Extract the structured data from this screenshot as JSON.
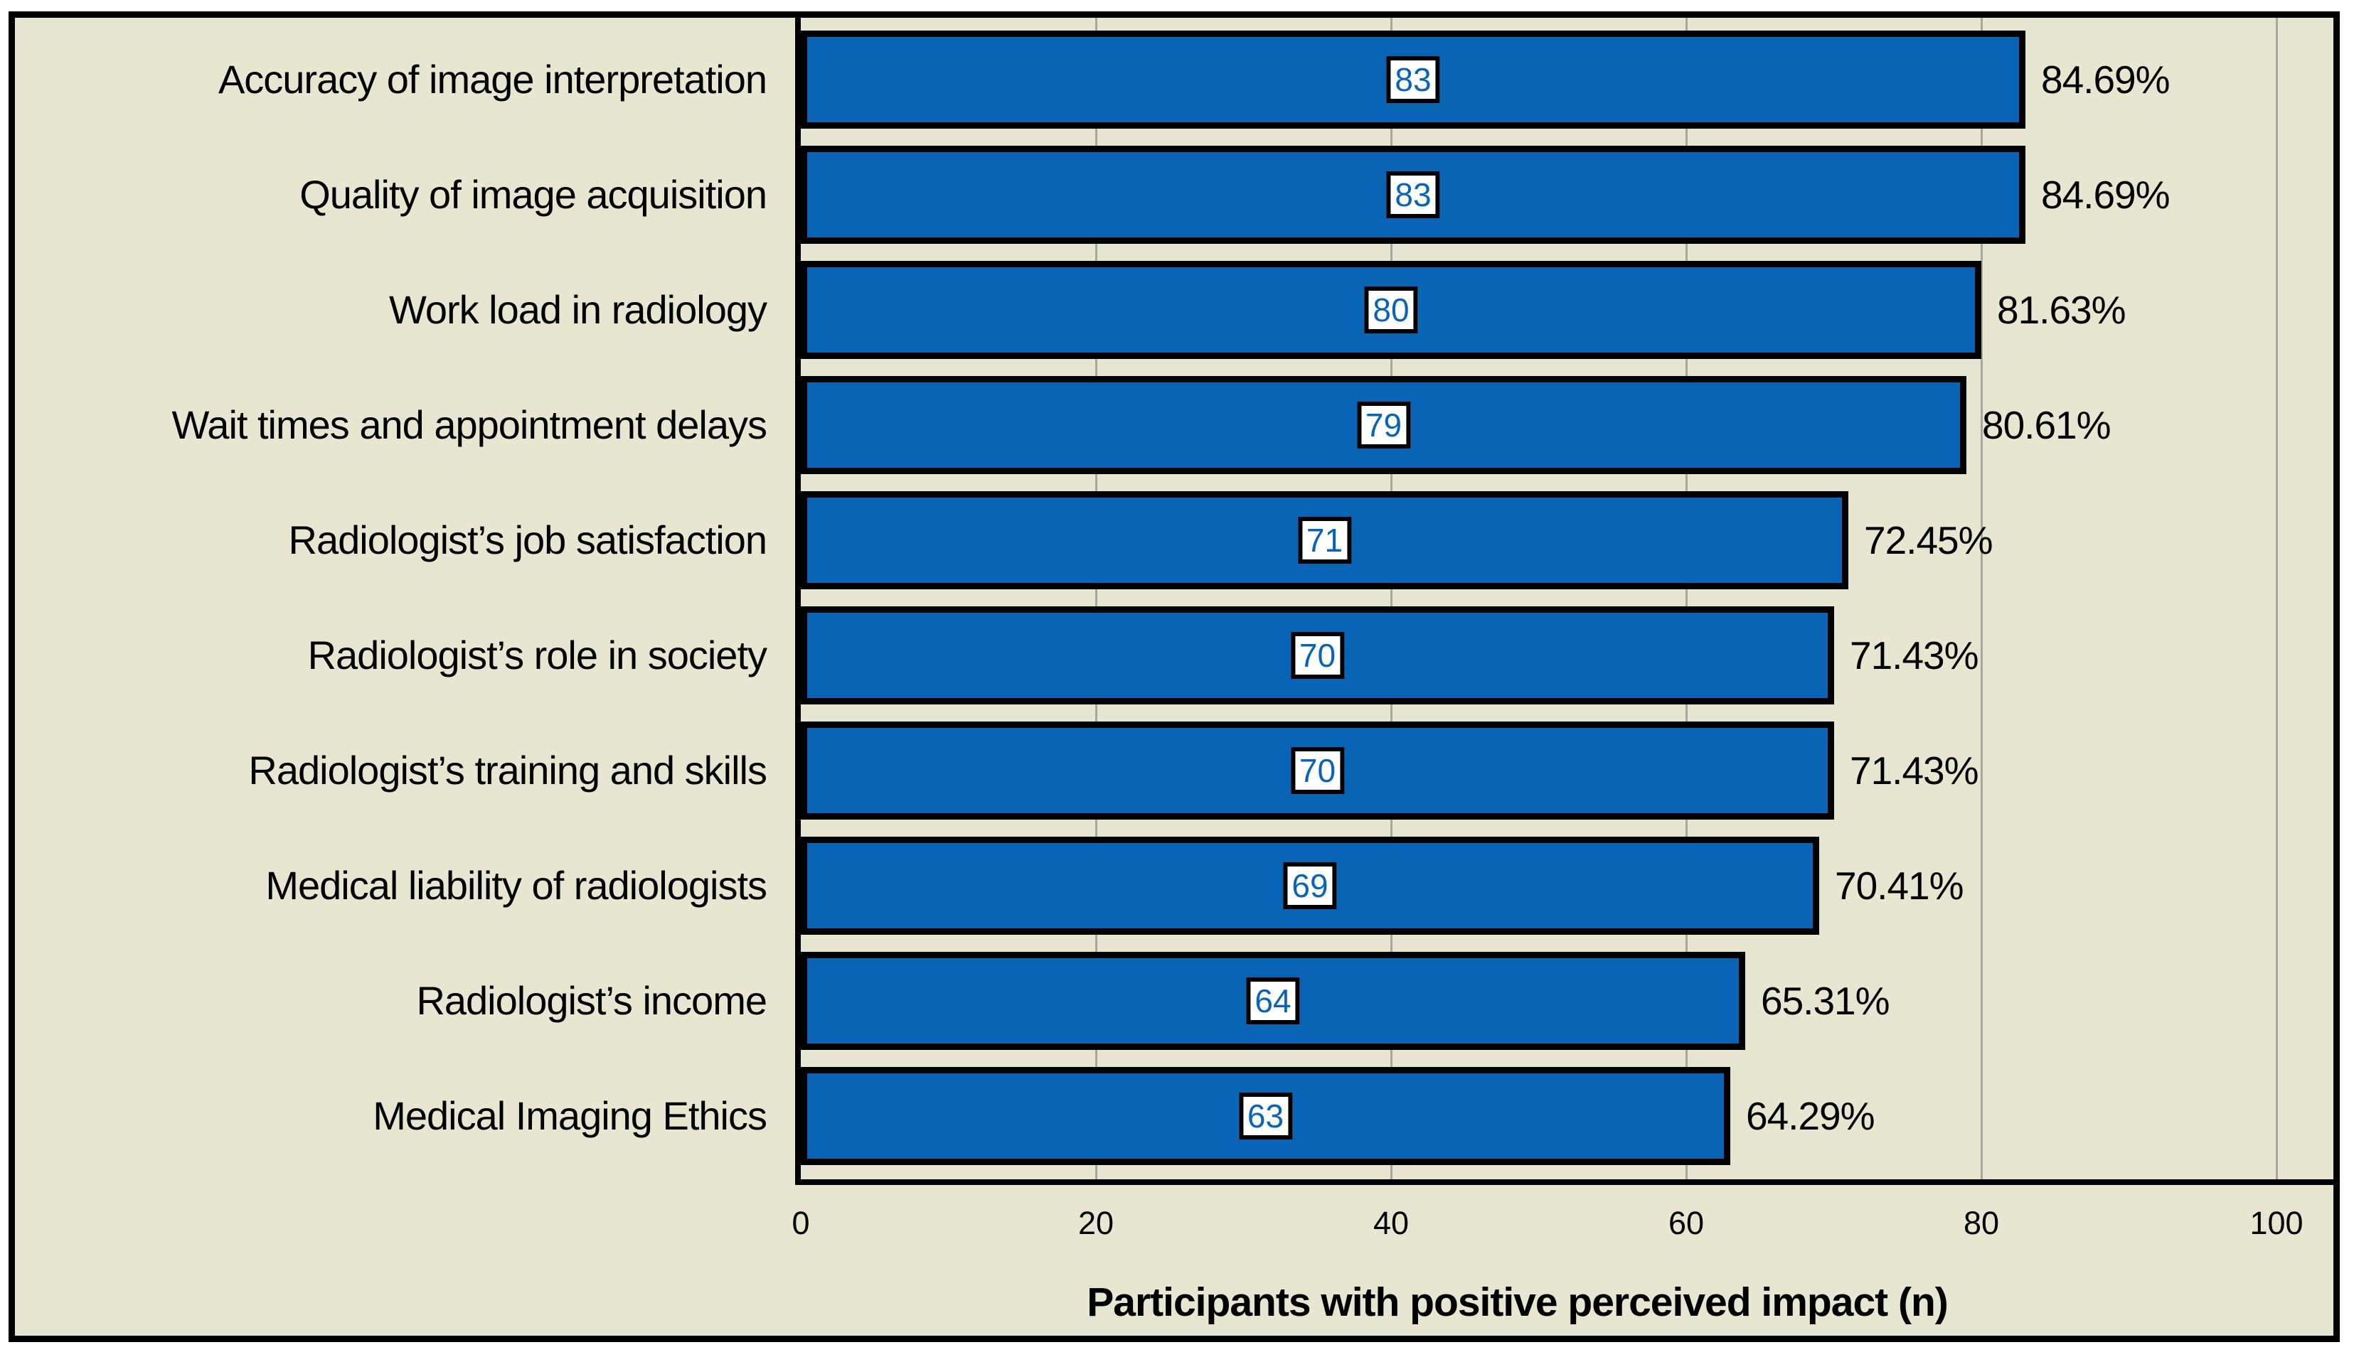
{
  "chart_data": {
    "type": "bar",
    "orientation": "horizontal",
    "title": "",
    "xlabel": "Participants with positive perceived impact (n)",
    "ylabel": "",
    "xlim": [
      0,
      103
    ],
    "xticks": [
      0,
      20,
      40,
      60,
      80,
      100
    ],
    "grid": "vertical gridlines at major ticks",
    "legend": "none",
    "categories": [
      "Accuracy of image interpretation",
      "Quality of image acquisition",
      "Work load in radiology",
      "Wait times and appointment delays",
      "Radiologist’s job satisfaction",
      "Radiologist’s role in society",
      "Radiologist’s training and skills",
      "Medical liability of radiologists",
      "Radiologist’s income",
      "Medical Imaging Ethics"
    ],
    "values": [
      83,
      83,
      80,
      79,
      71,
      70,
      70,
      69,
      64,
      63
    ],
    "percent_labels": [
      "84.69%",
      "84.69%",
      "81.63%",
      "80.61%",
      "72.45%",
      "71.43%",
      "71.43%",
      "70.41%",
      "65.31%",
      "64.29%"
    ],
    "colors": {
      "bar_fill": "#0a64b5",
      "bar_border": "#000000",
      "plot_background": "#e6e6d1",
      "outer_background": "#ffffff",
      "value_box_background": "#ffffff",
      "value_text": "#0a64b5",
      "percent_text": "#000000",
      "gridline": "#a8a8a0",
      "axis_line": "#000000"
    }
  }
}
